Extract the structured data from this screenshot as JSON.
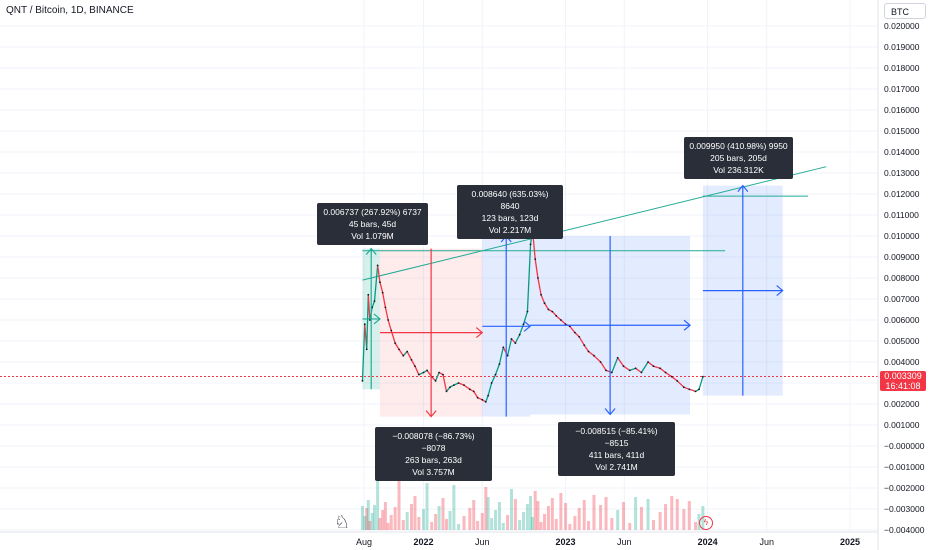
{
  "header": {
    "symbol_title": "QNT / Bitcoin, 1D, BINANCE",
    "currency": "BTC"
  },
  "price_badge": {
    "price": "0.003309",
    "countdown": "16:41:08"
  },
  "chart_data": {
    "type": "line",
    "title": "QNT / Bitcoin, 1D, BINANCE",
    "xlabel": "",
    "ylabel": "",
    "ylim": [
      -0.004,
      0.0205
    ],
    "y_ticks": [
      "0.020000",
      "0.019000",
      "0.018000",
      "0.017000",
      "0.016000",
      "0.015000",
      "0.014000",
      "0.013000",
      "0.012000",
      "0.011000",
      "0.010000",
      "0.009000",
      "0.008000",
      "0.007000",
      "0.006000",
      "0.005000",
      "0.004000",
      "0.003000",
      "0.002000",
      "0.001000",
      "−0.000000",
      "−0.001000",
      "−0.002000",
      "−0.003000",
      "−0.004000"
    ],
    "x_ticks": [
      {
        "label": "Aug",
        "date": "2021-08-01"
      },
      {
        "label": "2022",
        "date": "2022-01-01"
      },
      {
        "label": "Jun",
        "date": "2022-06-01"
      },
      {
        "label": "2023",
        "date": "2023-01-01"
      },
      {
        "label": "Jun",
        "date": "2023-06-01"
      },
      {
        "label": "2024",
        "date": "2024-01-01"
      },
      {
        "label": "Jun",
        "date": "2024-06-01"
      },
      {
        "label": "2025",
        "date": "2025-01-01"
      }
    ],
    "series": [
      {
        "points": [
          [
            "2021-07-28",
            0.0031
          ],
          [
            "2021-08-03",
            0.0058
          ],
          [
            "2021-08-08",
            0.0046
          ],
          [
            "2021-08-12",
            0.0072
          ],
          [
            "2021-08-16",
            0.006
          ],
          [
            "2021-08-22",
            0.0066
          ],
          [
            "2021-08-28",
            0.0069
          ],
          [
            "2021-09-05",
            0.0086
          ],
          [
            "2021-09-11",
            0.0078
          ],
          [
            "2021-09-18",
            0.0073
          ],
          [
            "2021-09-25",
            0.0066
          ],
          [
            "2021-10-02",
            0.006
          ],
          [
            "2021-10-10",
            0.0055
          ],
          [
            "2021-10-20",
            0.0049
          ],
          [
            "2021-10-30",
            0.0046
          ],
          [
            "2021-11-10",
            0.0043
          ],
          [
            "2021-11-20",
            0.0045
          ],
          [
            "2021-12-01",
            0.0041
          ],
          [
            "2021-12-10",
            0.0038
          ],
          [
            "2021-12-20",
            0.0034
          ],
          [
            "2022-01-01",
            0.0035
          ],
          [
            "2022-01-10",
            0.0036
          ],
          [
            "2022-01-22",
            0.0033
          ],
          [
            "2022-02-01",
            0.0031
          ],
          [
            "2022-02-10",
            0.0035
          ],
          [
            "2022-02-20",
            0.0034
          ],
          [
            "2022-03-01",
            0.0026
          ],
          [
            "2022-03-10",
            0.0028
          ],
          [
            "2022-03-20",
            0.0029
          ],
          [
            "2022-04-01",
            0.003
          ],
          [
            "2022-04-15",
            0.0029
          ],
          [
            "2022-04-30",
            0.0027
          ],
          [
            "2022-05-10",
            0.0026
          ],
          [
            "2022-05-20",
            0.0023
          ],
          [
            "2022-06-01",
            0.0022
          ],
          [
            "2022-06-10",
            0.0021
          ],
          [
            "2022-06-16",
            0.0024
          ],
          [
            "2022-06-25",
            0.003
          ],
          [
            "2022-07-05",
            0.0034
          ],
          [
            "2022-07-15",
            0.0039
          ],
          [
            "2022-07-25",
            0.0047
          ],
          [
            "2022-08-05",
            0.0043
          ],
          [
            "2022-08-15",
            0.0051
          ],
          [
            "2022-08-25",
            0.0049
          ],
          [
            "2022-09-05",
            0.0053
          ],
          [
            "2022-09-15",
            0.0058
          ],
          [
            "2022-09-25",
            0.0064
          ],
          [
            "2022-10-03",
            0.0096
          ],
          [
            "2022-10-08",
            0.0103
          ],
          [
            "2022-10-15",
            0.0089
          ],
          [
            "2022-10-22",
            0.008
          ],
          [
            "2022-10-30",
            0.0072
          ],
          [
            "2022-11-08",
            0.0068
          ],
          [
            "2022-11-18",
            0.0065
          ],
          [
            "2022-11-28",
            0.0064
          ],
          [
            "2022-12-08",
            0.0062
          ],
          [
            "2022-12-20",
            0.006
          ],
          [
            "2023-01-01",
            0.0058
          ],
          [
            "2023-01-12",
            0.0057
          ],
          [
            "2023-01-25",
            0.0054
          ],
          [
            "2023-02-05",
            0.0052
          ],
          [
            "2023-02-18",
            0.0048
          ],
          [
            "2023-03-01",
            0.0045
          ],
          [
            "2023-03-15",
            0.0043
          ],
          [
            "2023-04-01",
            0.004
          ],
          [
            "2023-04-15",
            0.0036
          ],
          [
            "2023-04-30",
            0.0035
          ],
          [
            "2023-05-15",
            0.0042
          ],
          [
            "2023-05-30",
            0.0038
          ],
          [
            "2023-06-15",
            0.0036
          ],
          [
            "2023-06-30",
            0.0037
          ],
          [
            "2023-07-15",
            0.0035
          ],
          [
            "2023-08-01",
            0.004
          ],
          [
            "2023-08-15",
            0.0038
          ],
          [
            "2023-09-01",
            0.0037
          ],
          [
            "2023-09-15",
            0.0035
          ],
          [
            "2023-10-01",
            0.0033
          ],
          [
            "2023-10-15",
            0.0031
          ],
          [
            "2023-11-01",
            0.0028
          ],
          [
            "2023-11-15",
            0.0027
          ],
          [
            "2023-12-01",
            0.0026
          ],
          [
            "2023-12-10",
            0.0027
          ],
          [
            "2023-12-20",
            0.0033
          ]
        ]
      }
    ],
    "current_price": 0.003309,
    "measurements": [
      {
        "type": "gain",
        "color": "#22ab94",
        "lines": [
          "0.006737 (267.92%) 6737",
          "45 bars, 45d",
          "Vol 1.079M"
        ],
        "start": "2021-07-28",
        "end": "2021-09-11",
        "from": 0.0027,
        "to": 0.0094
      },
      {
        "type": "loss",
        "color": "#f23645",
        "lines": [
          "−0.008078 (−86.73%) −8078",
          "263 bars, 263d",
          "Vol 3.757M"
        ],
        "start": "2021-09-11",
        "end": "2022-06-01",
        "from": 0.0094,
        "to": 0.0014
      },
      {
        "type": "gain",
        "color": "#2962ff",
        "lines": [
          "0.008640 (635.03%) 8640",
          "123 bars, 123d",
          "Vol 2.217M"
        ],
        "start": "2022-06-01",
        "end": "2022-10-02",
        "from": 0.0014,
        "to": 0.01
      },
      {
        "type": "loss",
        "color": "#2962ff",
        "lines": [
          "−0.008515 (−85.41%) −8515",
          "411 bars, 411d",
          "Vol 2.741M"
        ],
        "start": "2022-10-02",
        "end": "2023-11-17",
        "from": 0.01,
        "to": 0.0015
      },
      {
        "type": "gain",
        "color": "#2962ff",
        "lines": [
          "0.009950 (410.98%) 9950",
          "205 bars, 205d",
          "Vol 236.312K"
        ],
        "start": "2023-12-20",
        "end": "2024-07-12",
        "from": 0.0024,
        "to": 0.0124
      }
    ],
    "volume": "histogram, bottom"
  }
}
